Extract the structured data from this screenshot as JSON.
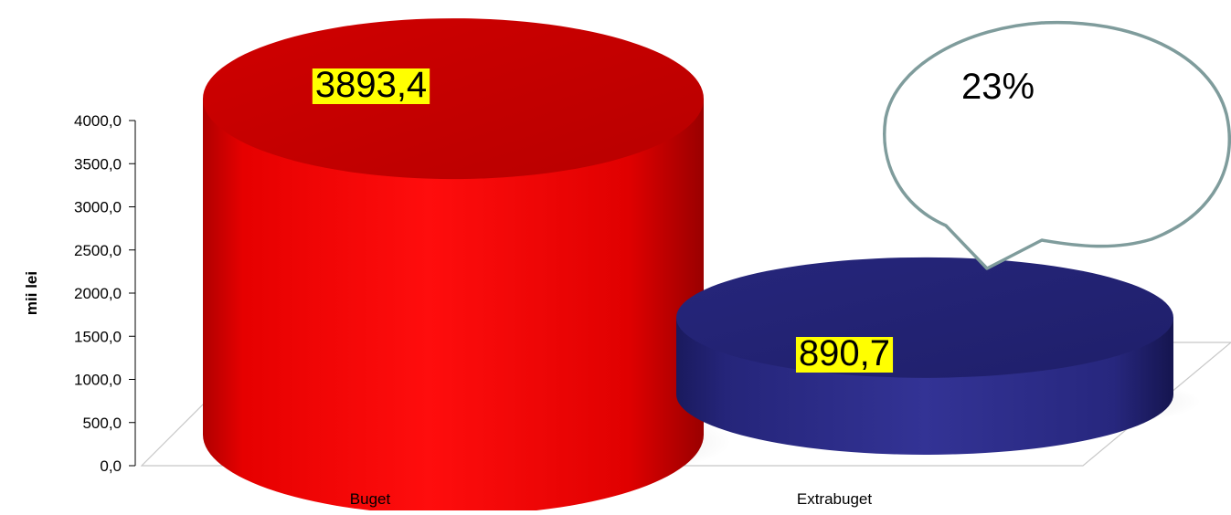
{
  "chart_data": {
    "type": "bar",
    "title": "",
    "xlabel": "",
    "ylabel": "mii lei",
    "categories": [
      "Buget",
      "Extrabuget"
    ],
    "values": [
      3893.4,
      890.7
    ],
    "value_labels": [
      "3893,4",
      "890,7"
    ],
    "ylim": [
      0,
      4000
    ],
    "yticks": [
      0,
      500,
      1000,
      1500,
      2000,
      2500,
      3000,
      3500,
      4000
    ],
    "ytick_labels": [
      "0,0",
      "500,0",
      "1000,0",
      "1500,0",
      "2000,0",
      "2500,0",
      "3000,0",
      "3500,0",
      "4000,0"
    ],
    "grid": false,
    "style": "3d-cylinder",
    "colors": [
      "#ff0000",
      "#2a2a8c"
    ],
    "label_background": "#ffff00",
    "callout": {
      "text": "23%",
      "target_category": "Extrabuget"
    }
  }
}
